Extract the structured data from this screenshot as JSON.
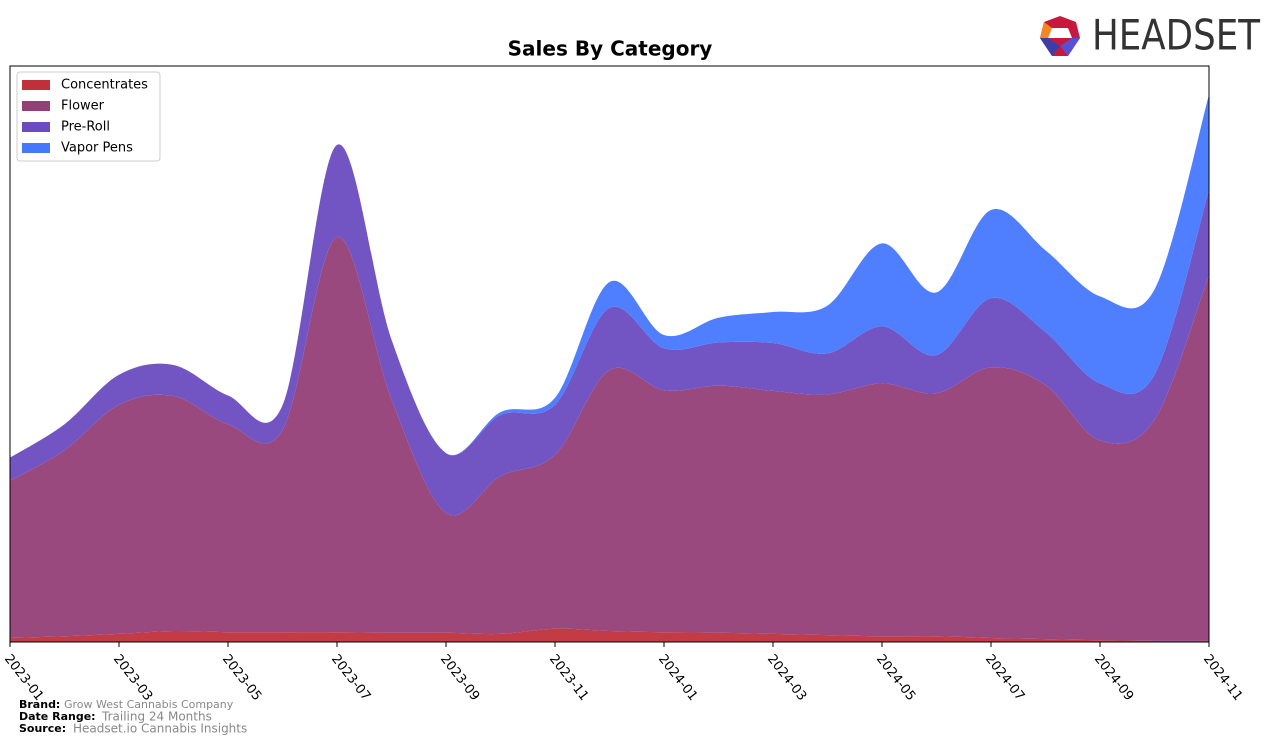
{
  "chart_data": {
    "type": "stacked-area",
    "title": "Sales By Category",
    "categories": [
      "2023-01",
      null,
      "2023-03",
      null,
      "2023-05",
      null,
      "2023-07",
      null,
      "2023-09",
      null,
      "2023-11",
      null,
      "2024-01",
      null,
      "2024-03",
      null,
      "2024-05",
      null,
      "2024-07",
      null,
      "2024-09",
      null,
      "2024-11"
    ],
    "series": [
      {
        "name": "Concentrates",
        "color": "#c0303b",
        "values": [
          0.7,
          1.0,
          1.4,
          1.9,
          1.7,
          1.7,
          1.7,
          1.6,
          1.6,
          1.4,
          2.3,
          1.9,
          1.7,
          1.6,
          1.4,
          1.2,
          1.0,
          1.0,
          0.7,
          0.5,
          0.3,
          0.2,
          0.2
        ]
      },
      {
        "name": "Flower",
        "color": "#953f77",
        "values": [
          27.3,
          32.3,
          39.8,
          40.8,
          36.1,
          35.1,
          68.6,
          40.5,
          20.8,
          27.4,
          30.2,
          45.3,
          42.0,
          42.9,
          42.2,
          41.8,
          43.9,
          42.2,
          47.0,
          44.1,
          34.7,
          38.4,
          63.5
        ]
      },
      {
        "name": "Pre-Roll",
        "color": "#6b4bc0",
        "values": [
          4.0,
          4.5,
          5.2,
          5.4,
          5.0,
          4.3,
          16.0,
          10.4,
          10.4,
          10.6,
          8.7,
          10.8,
          7.3,
          7.5,
          8.3,
          7.1,
          9.9,
          6.6,
          12.0,
          9.2,
          9.9,
          7.8,
          14.8
        ]
      },
      {
        "name": "Vapor Pens",
        "color": "#4678ff",
        "values": [
          0,
          0,
          0,
          0,
          0,
          0,
          0,
          0,
          0,
          0.5,
          1.2,
          4.5,
          2.3,
          4.3,
          5.4,
          8.3,
          14.4,
          10.9,
          15.3,
          14.2,
          15.1,
          14.8,
          16.5
        ]
      }
    ],
    "ylim": [
      0,
      100
    ],
    "legend": "upper-left"
  },
  "logo": "HEADSET",
  "footer": {
    "brand_label": "Brand:",
    "brand": "Grow West Cannabis Company",
    "date_range_label": "Date Range:",
    "date_range": "Trailing 24 Months",
    "source_label": "Source:",
    "source": "Headset.io Cannabis Insights"
  }
}
